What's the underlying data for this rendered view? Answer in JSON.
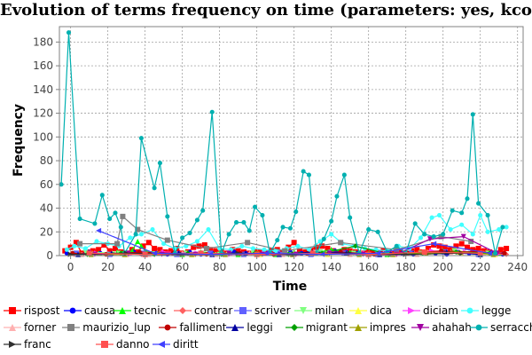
{
  "chart_data": {
    "type": "line",
    "title": "Evolution of terms frequency on time (parameters: yes, kcore)",
    "xlabel": "Time",
    "ylabel": "Frequency",
    "xlim": [
      -6,
      243
    ],
    "ylim": [
      0,
      193
    ],
    "xticks": [
      0,
      20,
      40,
      60,
      80,
      100,
      120,
      140,
      160,
      180,
      200,
      220,
      240
    ],
    "yticks": [
      0,
      20,
      40,
      60,
      80,
      100,
      120,
      140,
      160,
      180
    ],
    "grid": true,
    "legend_position": "bottom",
    "series": [
      {
        "name": "rispost",
        "color": "#ff0000",
        "marker": "square",
        "x": [
          -3,
          0,
          3,
          6,
          9,
          12,
          15,
          18,
          21,
          24,
          27,
          30,
          33,
          36,
          39,
          42,
          45,
          48,
          51,
          54,
          57,
          60,
          63,
          66,
          69,
          72,
          75,
          78,
          81,
          84,
          87,
          90,
          93,
          96,
          99,
          102,
          105,
          108,
          111,
          114,
          117,
          120,
          123,
          126,
          129,
          132,
          135,
          138,
          141,
          144,
          147,
          150,
          153,
          156,
          159,
          162,
          165,
          168,
          171,
          174,
          177,
          180,
          183,
          186,
          189,
          192,
          195,
          198,
          201,
          204,
          207,
          210,
          213,
          216,
          219,
          222,
          225,
          228,
          231,
          234
        ],
        "y": [
          4,
          7,
          11,
          2,
          3,
          4,
          5,
          9,
          4,
          6,
          3,
          2,
          5,
          3,
          8,
          11,
          6,
          5,
          3,
          4,
          6,
          2,
          3,
          7,
          8,
          9,
          5,
          4,
          3,
          2,
          5,
          4,
          3,
          2,
          4,
          3,
          2,
          4,
          5,
          3,
          7,
          11,
          4,
          3,
          5,
          7,
          8,
          6,
          4,
          3,
          5,
          4,
          3,
          2,
          4,
          3,
          2,
          4,
          3,
          2,
          3,
          2,
          4,
          5,
          3,
          6,
          9,
          8,
          7,
          5,
          8,
          10,
          7,
          5,
          6,
          4,
          3,
          2,
          5,
          6
        ]
      },
      {
        "name": "causa",
        "color": "#0000ff",
        "marker": "circle",
        "x": [
          -2,
          4,
          10,
          16,
          22,
          28,
          34,
          40,
          46,
          52,
          58,
          64,
          70,
          76,
          82,
          88,
          94,
          100,
          106,
          112,
          118,
          124,
          130,
          136,
          142,
          148,
          154,
          160,
          166,
          172,
          178,
          184,
          190,
          196,
          202,
          208,
          214,
          220,
          226,
          232
        ],
        "y": [
          2,
          1,
          3,
          2,
          1,
          2,
          3,
          1,
          2,
          1,
          2,
          3,
          1,
          2,
          1,
          3,
          2,
          1,
          2,
          1,
          3,
          2,
          1,
          2,
          4,
          3,
          2,
          1,
          2,
          1,
          2,
          1,
          3,
          2,
          1,
          3,
          2,
          1,
          2,
          1
        ]
      },
      {
        "name": "tecnic",
        "color": "#00ff00",
        "marker": "triangle-up",
        "x": [
          5,
          15,
          25,
          33,
          36,
          38,
          40,
          50,
          60,
          70,
          80,
          90,
          100,
          110,
          120,
          130,
          140,
          150,
          160,
          170,
          180,
          190,
          200,
          210,
          220,
          230
        ],
        "y": [
          1,
          2,
          3,
          4,
          12,
          8,
          4,
          2,
          1,
          3,
          2,
          1,
          2,
          1,
          3,
          2,
          5,
          3,
          2,
          1,
          2,
          3,
          4,
          2,
          1,
          2
        ]
      },
      {
        "name": "contrar",
        "color": "#ff6060",
        "marker": "diamond",
        "x": [
          2,
          20,
          38,
          56,
          74,
          92,
          110,
          128,
          146,
          164,
          182,
          200,
          218,
          234
        ],
        "y": [
          1,
          2,
          1,
          3,
          2,
          1,
          2,
          1,
          2,
          1,
          2,
          3,
          2,
          1
        ]
      },
      {
        "name": "scriver",
        "color": "#6060ff",
        "marker": "square",
        "x": [
          3,
          21,
          39,
          57,
          75,
          93,
          111,
          129,
          147,
          165,
          183,
          201,
          219
        ],
        "y": [
          2,
          1,
          2,
          1,
          2,
          1,
          3,
          1,
          2,
          1,
          2,
          3,
          1
        ]
      },
      {
        "name": "milan",
        "color": "#80ff80",
        "marker": "triangle-down",
        "x": [
          8,
          26,
          44,
          62,
          80,
          98,
          116,
          134,
          152,
          170,
          188,
          206,
          224
        ],
        "y": [
          3,
          2,
          1,
          2,
          1,
          2,
          1,
          3,
          2,
          1,
          2,
          4,
          2
        ]
      },
      {
        "name": "dica",
        "color": "#ffff40",
        "marker": "triangle-up",
        "x": [
          12,
          30,
          48,
          66,
          84,
          102,
          120,
          138,
          156,
          174,
          192,
          210,
          228
        ],
        "y": [
          2,
          1,
          2,
          1,
          2,
          1,
          2,
          1,
          2,
          1,
          3,
          2,
          1
        ]
      },
      {
        "name": "diciam",
        "color": "#ff40ff",
        "marker": "triangle-right",
        "x": [
          14,
          32,
          50,
          68,
          86,
          104,
          122,
          140,
          158,
          176,
          194,
          212,
          230
        ],
        "y": [
          2,
          1,
          3,
          2,
          1,
          2,
          1,
          3,
          2,
          1,
          4,
          3,
          2
        ]
      },
      {
        "name": "legge",
        "color": "#40ffff",
        "marker": "circle",
        "x": [
          -2,
          2,
          8,
          14,
          20,
          26,
          32,
          38,
          44,
          50,
          56,
          62,
          68,
          74,
          80,
          86,
          92,
          98,
          104,
          110,
          116,
          122,
          128,
          134,
          140,
          146,
          152,
          158,
          164,
          170,
          176,
          182,
          188,
          194,
          198,
          204,
          210,
          216,
          220,
          224,
          230,
          234
        ],
        "y": [
          5,
          8,
          6,
          12,
          10,
          8,
          15,
          18,
          22,
          10,
          6,
          8,
          12,
          22,
          6,
          5,
          8,
          6,
          5,
          4,
          6,
          8,
          5,
          12,
          18,
          10,
          8,
          6,
          5,
          4,
          8,
          6,
          15,
          32,
          34,
          22,
          26,
          18,
          34,
          20,
          22,
          24
        ]
      },
      {
        "name": "forner",
        "color": "#ffb0b0",
        "marker": "triangle-up",
        "x": [
          6,
          24,
          42,
          60,
          78,
          96,
          114,
          132,
          150,
          168,
          186,
          204,
          222
        ],
        "y": [
          1,
          2,
          1,
          2,
          1,
          2,
          1,
          2,
          1,
          2,
          1,
          3,
          2
        ]
      },
      {
        "name": "maurizio_lup",
        "color": "#808080",
        "marker": "square",
        "x": [
          5,
          25,
          28,
          36,
          52,
          73,
          95,
          115,
          145,
          175,
          199,
          215
        ],
        "y": [
          10,
          10,
          33,
          22,
          13,
          6,
          11,
          4,
          11,
          5,
          16,
          12
        ]
      },
      {
        "name": "falliment",
        "color": "#c00000",
        "marker": "circle",
        "x": [
          1,
          19,
          37,
          55,
          73,
          91,
          109,
          127,
          145,
          163,
          181,
          199,
          217,
          233
        ],
        "y": [
          2,
          1,
          3,
          2,
          1,
          2,
          1,
          2,
          3,
          1,
          2,
          4,
          3,
          2
        ]
      },
      {
        "name": "leggi",
        "color": "#0000a0",
        "marker": "triangle-up",
        "x": [
          4,
          22,
          40,
          58,
          76,
          94,
          112,
          130,
          148,
          166,
          184,
          202,
          220
        ],
        "y": [
          1,
          2,
          1,
          2,
          1,
          2,
          1,
          3,
          2,
          1,
          2,
          3,
          1
        ]
      },
      {
        "name": "migrant",
        "color": "#00a000",
        "marker": "diamond",
        "x": [
          9,
          27,
          45,
          63,
          81,
          99,
          117,
          135,
          153,
          171,
          189,
          207,
          225
        ],
        "y": [
          1,
          2,
          1,
          2,
          1,
          2,
          1,
          2,
          8,
          1,
          2,
          3,
          2
        ]
      },
      {
        "name": "impres",
        "color": "#a0a000",
        "marker": "triangle-up",
        "x": [
          11,
          29,
          47,
          65,
          83,
          101,
          119,
          137,
          155,
          173,
          191,
          209,
          227
        ],
        "y": [
          1,
          1,
          2,
          1,
          1,
          2,
          1,
          2,
          1,
          1,
          2,
          3,
          1
        ]
      },
      {
        "name": "ahahah",
        "color": "#a000a0",
        "marker": "triangle-down",
        "x": [
          13,
          31,
          49,
          67,
          85,
          103,
          121,
          139,
          157,
          175,
          193,
          211,
          229
        ],
        "y": [
          1,
          2,
          1,
          1,
          2,
          1,
          1,
          2,
          1,
          1,
          14,
          16,
          2
        ]
      },
      {
        "name": "serracchian",
        "color": "#00b0b0",
        "marker": "circle",
        "x": [
          -5,
          -1,
          5,
          13,
          17,
          21,
          24,
          27,
          29,
          35,
          38,
          45,
          48,
          52,
          56,
          60,
          64,
          68,
          71,
          76,
          81,
          85,
          89,
          93,
          96,
          99,
          103,
          107,
          111,
          114,
          118,
          121,
          125,
          128,
          132,
          136,
          140,
          143,
          147,
          150,
          155,
          160,
          165,
          170,
          175,
          180,
          185,
          190,
          195,
          200,
          205,
          210,
          213,
          216,
          219,
          224,
          228,
          232
        ],
        "y": [
          60,
          188,
          31,
          27,
          51,
          31,
          36,
          24,
          2,
          18,
          99,
          57,
          78,
          33,
          2,
          15,
          19,
          30,
          38,
          121,
          2,
          18,
          28,
          28,
          21,
          41,
          34,
          2,
          13,
          24,
          23,
          37,
          71,
          68,
          2,
          14,
          29,
          50,
          68,
          32,
          2,
          22,
          20,
          3,
          8,
          2,
          27,
          18,
          16,
          18,
          38,
          36,
          48,
          119,
          44,
          34,
          2,
          24
        ]
      },
      {
        "name": "franc",
        "color": "#303030",
        "marker": "triangle-right",
        "x": [
          0,
          30,
          60,
          90,
          120,
          150,
          180,
          210
        ],
        "y": [
          1,
          2,
          1,
          2,
          1,
          2,
          1,
          2
        ]
      },
      {
        "name": "danno",
        "color": "#ff5050",
        "marker": "square",
        "x": [
          10,
          40,
          70,
          100,
          130,
          160,
          190,
          220
        ],
        "y": [
          2,
          1,
          2,
          1,
          2,
          1,
          3,
          2
        ]
      },
      {
        "name": "diritt",
        "color": "#4040ff",
        "marker": "triangle-left",
        "x": [
          15,
          45,
          75,
          105,
          135,
          165,
          195,
          225
        ],
        "y": [
          21,
          2,
          1,
          2,
          1,
          2,
          10,
          2
        ]
      }
    ]
  }
}
